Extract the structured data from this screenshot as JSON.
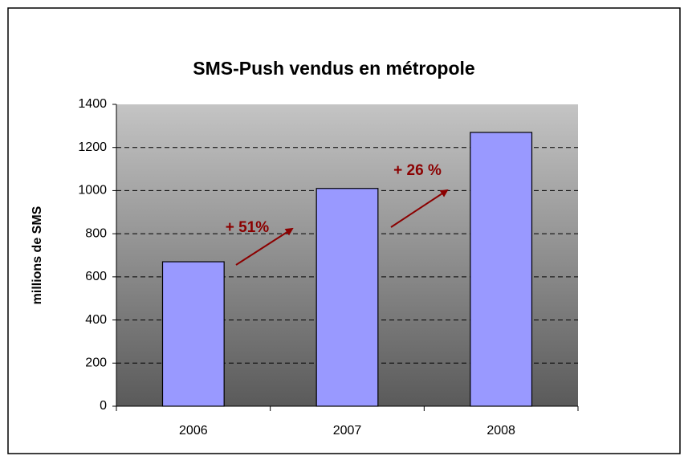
{
  "chart_data": {
    "type": "bar",
    "title": "SMS-Push vendus en métropole",
    "y_label": "millions de SMS",
    "categories": [
      "2006",
      "2007",
      "2008"
    ],
    "values": [
      670,
      1010,
      1270
    ],
    "color": "#9999ff",
    "ylim": [
      0,
      1400
    ],
    "yticks": [
      0,
      200,
      400,
      600,
      800,
      1000,
      1200,
      1400
    ],
    "grid": true,
    "annotations": [
      "+ 51%",
      "+ 26 %"
    ]
  }
}
